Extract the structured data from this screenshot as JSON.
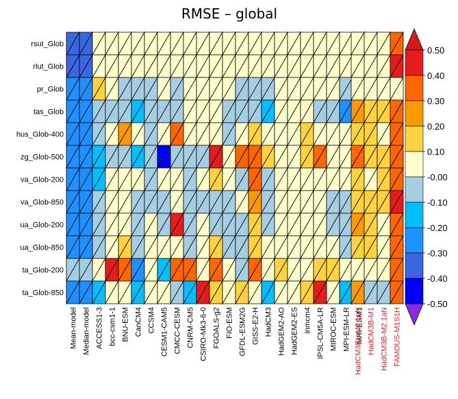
{
  "chart_data": {
    "type": "heatmap",
    "title": "RMSE – global",
    "cell_style": "split-triangle; lower-left and upper-right triangles show two reference datasets",
    "rows": [
      "rsut_Glob",
      "rlut_Glob",
      "pr_Glob",
      "tas_Glob",
      "hus_Glob-400",
      "zg_Glob-500",
      "va_Glob-200",
      "va_Glob-850",
      "ua_Glob-200",
      "ua_Glob-850",
      "ta_Glob-200",
      "ta_Glob-850"
    ],
    "columns": [
      "Mean-model",
      "Median-model",
      "ACCESS1-3",
      "bcc-csm1-1",
      "BNU-ESM",
      "CanCM4",
      "CCSM4",
      "CESM1-CAM5",
      "CMCC-CESM",
      "CNRM-CM5",
      "CSIRO-Mk3-6-0",
      "FGOALS-g2",
      "FIO-ESM",
      "GFDL-ESM2G",
      "GISS-E2-H",
      "HadCM3",
      "HadGEM2-AO",
      "HadGEM2-ES",
      "inmcm4",
      "IPSL-CM5A-LR",
      "MIROC-ESM",
      "MPI-ESM-LR",
      "MRI-ESM1"
    ],
    "highlighted_columns": [
      "HadCM3BL-M2.1aN",
      "HadCM3B-M1",
      "HadCM3B-M2.1aN",
      "FAMOUS-M1S1H"
    ],
    "highlight_color": "#e8262b",
    "colorbar": {
      "labels": [
        "0.50",
        "0.40",
        "0.30",
        "0.20",
        "0.10",
        "-0.00",
        "-0.10",
        "-0.20",
        "-0.30",
        "-0.40",
        "-0.50"
      ],
      "levels": [
        -0.5,
        -0.4,
        -0.3,
        -0.2,
        -0.1,
        0.0,
        0.1,
        0.2,
        0.3,
        0.4,
        0.5
      ],
      "colors": [
        "#8a2be2",
        "#0000ff",
        "#3a66e0",
        "#1e90ff",
        "#00bfff",
        "#a6cee3",
        "#ffffcc",
        "#ffd23f",
        "#ff9900",
        "#ff6600",
        "#e61c1c",
        "#d7191c"
      ],
      "extend": "both"
    },
    "values": [
      [
        [
          -0.35,
          -0.35
        ],
        [
          -0.35,
          -0.35
        ],
        [
          0.05,
          0.05
        ],
        [
          0.05,
          0.05
        ],
        [
          0.05,
          0.05
        ],
        [
          0.05,
          0.05
        ],
        [
          0.05,
          0.05
        ],
        [
          0.05,
          0.05
        ],
        [
          0.05,
          0.05
        ],
        [
          0.05,
          0.05
        ],
        [
          0.05,
          0.05
        ],
        [
          0.05,
          0.05
        ],
        [
          0.05,
          0.05
        ],
        [
          0.05,
          0.05
        ],
        [
          0.05,
          0.05
        ],
        [
          0.05,
          0.05
        ],
        [
          0.05,
          0.05
        ],
        [
          0.05,
          0.05
        ],
        [
          0.05,
          0.05
        ],
        [
          0.05,
          0.05
        ],
        [
          0.05,
          0.05
        ],
        [
          0.05,
          0.05
        ],
        [
          0.15,
          0.15
        ]
      ],
      [
        [
          -0.35,
          -0.35
        ],
        [
          -0.35,
          -0.35
        ],
        [
          0.05,
          0.05
        ],
        [
          0.05,
          0.05
        ],
        [
          0.05,
          0.05
        ],
        [
          0.05,
          0.05
        ],
        [
          0.05,
          0.05
        ],
        [
          0.05,
          0.05
        ],
        [
          0.05,
          0.05
        ],
        [
          0.05,
          0.05
        ],
        [
          0.05,
          0.05
        ],
        [
          0.05,
          0.05
        ],
        [
          0.05,
          0.05
        ],
        [
          0.05,
          0.05
        ],
        [
          0.05,
          0.05
        ],
        [
          0.05,
          0.05
        ],
        [
          0.05,
          0.05
        ],
        [
          0.05,
          0.05
        ],
        [
          0.05,
          0.05
        ],
        [
          0.05,
          0.05
        ],
        [
          0.05,
          0.05
        ],
        [
          0.05,
          0.05
        ],
        [
          0.05,
          0.05
        ]
      ],
      [
        [
          -0.25,
          -0.25
        ],
        [
          -0.25,
          -0.25
        ],
        [
          0.15,
          0.15
        ],
        [
          0.05,
          0.05
        ],
        [
          -0.05,
          -0.05
        ],
        [
          -0.05,
          -0.05
        ],
        [
          -0.05,
          -0.05
        ],
        [
          0.05,
          0.05
        ],
        [
          -0.05,
          -0.05
        ],
        [
          0.05,
          0.05
        ],
        [
          0.05,
          0.05
        ],
        [
          0.05,
          0.05
        ],
        [
          0.05,
          0.05
        ],
        [
          -0.05,
          -0.05
        ],
        [
          -0.05,
          -0.05
        ],
        [
          -0.05,
          -0.05
        ],
        [
          0.05,
          0.05
        ],
        [
          0.05,
          0.05
        ],
        [
          0.05,
          0.05
        ],
        [
          0.05,
          0.05
        ],
        [
          0.05,
          0.05
        ],
        [
          -0.05,
          -0.05
        ],
        [
          0.05,
          0.05
        ]
      ],
      [
        [
          -0.3,
          -0.3
        ],
        [
          -0.3,
          -0.3
        ],
        [
          -0.05,
          -0.05
        ],
        [
          -0.05,
          -0.05
        ],
        [
          -0.05,
          -0.05
        ],
        [
          -0.15,
          -0.15
        ],
        [
          -0.05,
          -0.05
        ],
        [
          -0.05,
          -0.05
        ],
        [
          -0.05,
          -0.05
        ],
        [
          0.05,
          0.05
        ],
        [
          0.05,
          0.05
        ],
        [
          0.05,
          0.05
        ],
        [
          -0.05,
          -0.05
        ],
        [
          -0.05,
          -0.05
        ],
        [
          -0.05,
          -0.05
        ],
        [
          -0.15,
          -0.15
        ],
        [
          0.05,
          0.05
        ],
        [
          0.05,
          0.05
        ],
        [
          0.05,
          0.05
        ],
        [
          -0.05,
          -0.05
        ],
        [
          -0.05,
          -0.05
        ],
        [
          -0.25,
          -0.25
        ],
        [
          -0.05,
          -0.05
        ]
      ],
      [
        [
          -0.3,
          -0.3
        ],
        [
          -0.3,
          -0.3
        ],
        [
          -0.05,
          -0.05
        ],
        [
          0.05,
          0.05
        ],
        [
          0.25,
          0.25
        ],
        [
          0.05,
          0.05
        ],
        [
          -0.05,
          -0.05
        ],
        [
          0.05,
          0.05
        ],
        [
          0.35,
          0.35
        ],
        [
          0.05,
          0.05
        ],
        [
          0.05,
          0.05
        ],
        [
          0.05,
          0.05
        ],
        [
          -0.05,
          -0.05
        ],
        [
          0.05,
          0.05
        ],
        [
          0.15,
          0.15
        ],
        [
          0.05,
          0.05
        ],
        [
          0.05,
          0.05
        ],
        [
          0.05,
          0.05
        ],
        [
          0.15,
          0.15
        ],
        [
          0.05,
          0.05
        ],
        [
          0.05,
          0.05
        ],
        [
          0.05,
          0.05
        ],
        [
          0.45,
          0.45
        ]
      ],
      [
        [
          -0.3,
          -0.3
        ],
        [
          -0.3,
          -0.3
        ],
        [
          -0.15,
          -0.15
        ],
        [
          -0.05,
          -0.05
        ],
        [
          -0.05,
          -0.05
        ],
        [
          -0.15,
          -0.15
        ],
        [
          -0.05,
          -0.05
        ],
        [
          -0.45,
          -0.45
        ],
        [
          -0.05,
          -0.05
        ],
        [
          -0.05,
          -0.05
        ],
        [
          -0.05,
          -0.05
        ],
        [
          0.45,
          0.45
        ],
        [
          0.05,
          0.05
        ],
        [
          0.35,
          0.35
        ],
        [
          0.35,
          0.35
        ],
        [
          0.15,
          0.15
        ],
        [
          0.05,
          0.05
        ],
        [
          0.05,
          0.05
        ],
        [
          0.15,
          0.15
        ],
        [
          0.35,
          0.35
        ],
        [
          0.05,
          0.05
        ],
        [
          0.05,
          0.05
        ],
        [
          0.05,
          0.05
        ]
      ],
      [
        [
          -0.3,
          -0.3
        ],
        [
          -0.3,
          -0.3
        ],
        [
          -0.15,
          -0.15
        ],
        [
          0.05,
          0.05
        ],
        [
          0.05,
          0.05
        ],
        [
          0.05,
          0.05
        ],
        [
          -0.05,
          -0.05
        ],
        [
          0.05,
          0.05
        ],
        [
          0.05,
          0.05
        ],
        [
          -0.05,
          -0.05
        ],
        [
          0.05,
          0.05
        ],
        [
          0.15,
          0.15
        ],
        [
          0.05,
          0.05
        ],
        [
          -0.05,
          -0.05
        ],
        [
          0.35,
          0.35
        ],
        [
          -0.05,
          -0.05
        ],
        [
          0.05,
          0.05
        ],
        [
          0.05,
          0.05
        ],
        [
          0.05,
          0.05
        ],
        [
          0.05,
          0.05
        ],
        [
          0.05,
          0.05
        ],
        [
          0.05,
          0.05
        ],
        [
          -0.05,
          -0.05
        ]
      ],
      [
        [
          -0.3,
          -0.3
        ],
        [
          -0.3,
          -0.3
        ],
        [
          -0.05,
          -0.05
        ],
        [
          0.05,
          0.05
        ],
        [
          0.05,
          0.05
        ],
        [
          -0.05,
          -0.05
        ],
        [
          -0.05,
          -0.05
        ],
        [
          -0.05,
          -0.05
        ],
        [
          0.05,
          0.05
        ],
        [
          -0.05,
          -0.05
        ],
        [
          -0.05,
          -0.05
        ],
        [
          -0.05,
          -0.05
        ],
        [
          -0.05,
          -0.05
        ],
        [
          0.05,
          0.05
        ],
        [
          0.25,
          0.25
        ],
        [
          -0.05,
          -0.05
        ],
        [
          0.05,
          0.05
        ],
        [
          0.05,
          0.05
        ],
        [
          0.05,
          0.05
        ],
        [
          0.05,
          0.05
        ],
        [
          -0.05,
          -0.05
        ],
        [
          -0.05,
          -0.05
        ],
        [
          0.05,
          0.05
        ]
      ],
      [
        [
          -0.3,
          -0.3
        ],
        [
          -0.3,
          -0.3
        ],
        [
          -0.05,
          -0.05
        ],
        [
          0.05,
          0.05
        ],
        [
          0.05,
          0.05
        ],
        [
          -0.05,
          -0.05
        ],
        [
          0.05,
          0.05
        ],
        [
          -0.05,
          -0.05
        ],
        [
          0.45,
          0.45
        ],
        [
          -0.05,
          -0.05
        ],
        [
          0.05,
          0.05
        ],
        [
          -0.05,
          -0.05
        ],
        [
          -0.05,
          -0.05
        ],
        [
          -0.05,
          -0.05
        ],
        [
          0.15,
          0.15
        ],
        [
          -0.05,
          -0.05
        ],
        [
          0.05,
          0.05
        ],
        [
          0.05,
          0.05
        ],
        [
          0.05,
          0.05
        ],
        [
          0.05,
          0.05
        ],
        [
          -0.05,
          -0.05
        ],
        [
          -0.05,
          -0.05
        ],
        [
          -0.05,
          -0.05
        ]
      ],
      [
        [
          -0.3,
          -0.3
        ],
        [
          -0.3,
          -0.3
        ],
        [
          -0.05,
          -0.05
        ],
        [
          0.05,
          0.05
        ],
        [
          0.15,
          0.15
        ],
        [
          -0.05,
          -0.05
        ],
        [
          0.05,
          0.05
        ],
        [
          0.05,
          0.05
        ],
        [
          0.05,
          0.05
        ],
        [
          -0.05,
          -0.05
        ],
        [
          0.05,
          0.05
        ],
        [
          0.15,
          0.15
        ],
        [
          -0.05,
          -0.05
        ],
        [
          -0.05,
          -0.05
        ],
        [
          0.15,
          0.15
        ],
        [
          0.05,
          0.05
        ],
        [
          0.05,
          0.05
        ],
        [
          0.05,
          0.05
        ],
        [
          0.05,
          0.05
        ],
        [
          0.05,
          0.05
        ],
        [
          0.05,
          0.05
        ],
        [
          -0.05,
          -0.05
        ],
        [
          -0.05,
          -0.05
        ]
      ],
      [
        [
          -0.05,
          -0.05
        ],
        [
          -0.05,
          -0.05
        ],
        [
          0.05,
          0.05
        ],
        [
          0.45,
          0.45
        ],
        [
          0.35,
          0.35
        ],
        [
          -0.25,
          -0.25
        ],
        [
          0.05,
          0.05
        ],
        [
          -0.15,
          -0.15
        ],
        [
          0.35,
          0.35
        ],
        [
          0.35,
          0.35
        ],
        [
          0.05,
          0.05
        ],
        [
          0.35,
          0.35
        ],
        [
          0.05,
          0.05
        ],
        [
          -0.05,
          -0.05
        ],
        [
          0.35,
          0.35
        ],
        [
          0.05,
          0.05
        ],
        [
          0.15,
          0.15
        ],
        [
          0.05,
          0.05
        ],
        [
          0.05,
          0.05
        ],
        [
          0.15,
          0.15
        ],
        [
          0.15,
          0.15
        ],
        [
          0.05,
          0.05
        ],
        [
          -0.55,
          -0.55
        ]
      ],
      [
        [
          -0.25,
          -0.25
        ],
        [
          -0.25,
          -0.25
        ],
        [
          -0.15,
          -0.15
        ],
        [
          0.05,
          0.05
        ],
        [
          0.05,
          0.05
        ],
        [
          -0.15,
          -0.15
        ],
        [
          0.05,
          0.05
        ],
        [
          0.05,
          0.05
        ],
        [
          -0.05,
          -0.05
        ],
        [
          -0.15,
          -0.15
        ],
        [
          0.45,
          0.45
        ],
        [
          0.15,
          0.15
        ],
        [
          0.05,
          0.05
        ],
        [
          0.15,
          0.15
        ],
        [
          0.05,
          0.05
        ],
        [
          -0.15,
          -0.15
        ],
        [
          0.05,
          0.05
        ],
        [
          0.05,
          0.05
        ],
        [
          0.15,
          0.15
        ],
        [
          0.45,
          0.45
        ],
        [
          0.05,
          0.05
        ],
        [
          -0.15,
          -0.15
        ],
        [
          0.05,
          0.05
        ]
      ]
    ],
    "highlight_values": [
      [
        [
          0.05,
          0.05
        ],
        [
          0.05,
          0.05
        ],
        [
          0.05,
          0.05
        ],
        [
          0.35,
          0.35
        ]
      ],
      [
        [
          0.05,
          0.05
        ],
        [
          0.05,
          0.05
        ],
        [
          0.05,
          0.05
        ],
        [
          0.45,
          0.45
        ]
      ],
      [
        [
          0.05,
          0.05
        ],
        [
          0.05,
          0.05
        ],
        [
          0.05,
          0.05
        ],
        [
          0.05,
          0.05
        ]
      ],
      [
        [
          0.25,
          0.25
        ],
        [
          0.15,
          0.15
        ],
        [
          0.15,
          0.15
        ],
        [
          0.35,
          0.35
        ]
      ],
      [
        [
          0.15,
          0.15
        ],
        [
          0.15,
          0.15
        ],
        [
          0.05,
          0.05
        ],
        [
          0.35,
          0.35
        ]
      ],
      [
        [
          0.35,
          0.35
        ],
        [
          0.15,
          0.15
        ],
        [
          0.15,
          0.15
        ],
        [
          0.35,
          0.35
        ]
      ],
      [
        [
          0.15,
          0.15
        ],
        [
          0.05,
          0.05
        ],
        [
          0.15,
          0.15
        ],
        [
          0.35,
          0.35
        ]
      ],
      [
        [
          0.15,
          0.15
        ],
        [
          0.15,
          0.15
        ],
        [
          0.15,
          0.15
        ],
        [
          0.45,
          0.45
        ]
      ],
      [
        [
          0.25,
          0.25
        ],
        [
          0.15,
          0.15
        ],
        [
          0.05,
          0.05
        ],
        [
          0.35,
          0.35
        ]
      ],
      [
        [
          0.15,
          0.15
        ],
        [
          0.15,
          0.15
        ],
        [
          0.05,
          0.05
        ],
        [
          0.35,
          0.35
        ]
      ],
      [
        [
          0.05,
          0.05
        ],
        [
          0.05,
          0.05
        ],
        [
          0.05,
          0.05
        ],
        [
          0.35,
          0.35
        ]
      ],
      [
        [
          0.25,
          0.25
        ],
        [
          -0.05,
          -0.05
        ],
        [
          -0.05,
          -0.05
        ],
        [
          0.35,
          0.35
        ]
      ]
    ]
  }
}
